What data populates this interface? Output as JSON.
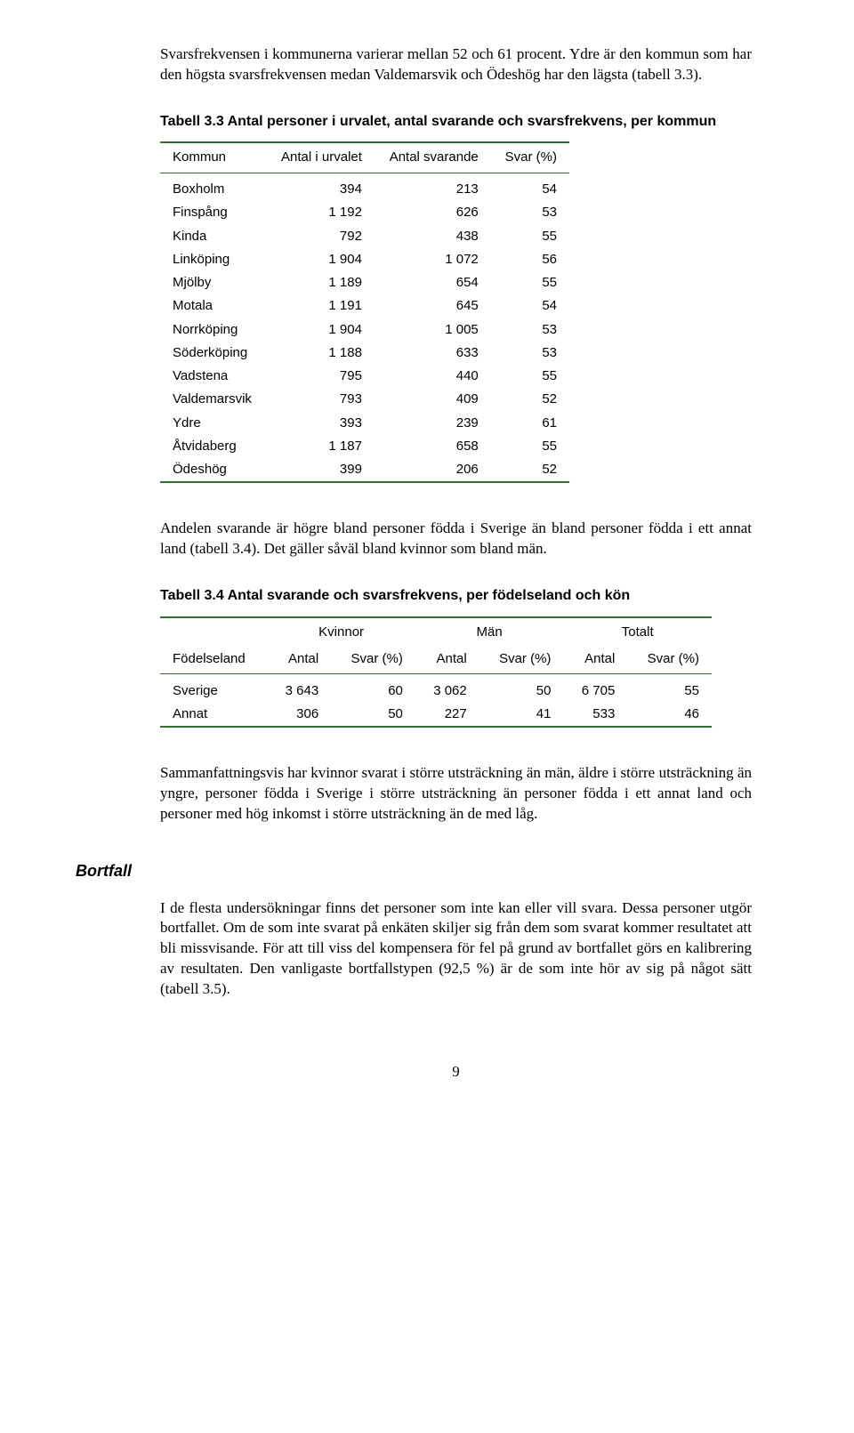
{
  "para1": "Svarsfrekvensen i kommunerna varierar mellan 52 och 61 procent. Ydre är den kommun som har den högsta svarsfrekvensen medan Valdemarsvik och Ödeshög har den lägsta (tabell 3.3).",
  "table1": {
    "caption": "Tabell 3.3 Antal personer i urvalet, antal svarande och svarsfrekvens, per kommun",
    "headers": {
      "c0": "Kommun",
      "c1": "Antal i urvalet",
      "c2": "Antal svarande",
      "c3": "Svar (%)"
    },
    "rows": [
      {
        "c0": "Boxholm",
        "c1": "394",
        "c2": "213",
        "c3": "54"
      },
      {
        "c0": "Finspång",
        "c1": "1 192",
        "c2": "626",
        "c3": "53"
      },
      {
        "c0": "Kinda",
        "c1": "792",
        "c2": "438",
        "c3": "55"
      },
      {
        "c0": "Linköping",
        "c1": "1 904",
        "c2": "1 072",
        "c3": "56"
      },
      {
        "c0": "Mjölby",
        "c1": "1 189",
        "c2": "654",
        "c3": "55"
      },
      {
        "c0": "Motala",
        "c1": "1 191",
        "c2": "645",
        "c3": "54"
      },
      {
        "c0": "Norrköping",
        "c1": "1 904",
        "c2": "1 005",
        "c3": "53"
      },
      {
        "c0": "Söderköping",
        "c1": "1 188",
        "c2": "633",
        "c3": "53"
      },
      {
        "c0": "Vadstena",
        "c1": "795",
        "c2": "440",
        "c3": "55"
      },
      {
        "c0": "Valdemarsvik",
        "c1": "793",
        "c2": "409",
        "c3": "52"
      },
      {
        "c0": "Ydre",
        "c1": "393",
        "c2": "239",
        "c3": "61"
      },
      {
        "c0": "Åtvidaberg",
        "c1": "1 187",
        "c2": "658",
        "c3": "55"
      },
      {
        "c0": "Ödeshög",
        "c1": "399",
        "c2": "206",
        "c3": "52"
      }
    ]
  },
  "para2": "Andelen svarande är högre bland personer födda i Sverige än bland personer födda i ett annat land (tabell 3.4). Det gäller såväl bland kvinnor som bland män.",
  "table2": {
    "caption": "Tabell 3.4 Antal svarande och svarsfrekvens, per födelseland och kön",
    "groupHeaders": {
      "g0": "Kvinnor",
      "g1": "Män",
      "g2": "Totalt"
    },
    "headers": {
      "c0": "Födelseland",
      "c1": "Antal",
      "c2": "Svar (%)",
      "c3": "Antal",
      "c4": "Svar (%)",
      "c5": "Antal",
      "c6": "Svar (%)"
    },
    "rows": [
      {
        "c0": "Sverige",
        "c1": "3 643",
        "c2": "60",
        "c3": "3 062",
        "c4": "50",
        "c5": "6 705",
        "c6": "55"
      },
      {
        "c0": "Annat",
        "c1": "306",
        "c2": "50",
        "c3": "227",
        "c4": "41",
        "c5": "533",
        "c6": "46"
      }
    ]
  },
  "para3": "Sammanfattningsvis har kvinnor svarat i större utsträckning än män, äldre i större utsträckning än yngre, personer födda i Sverige i större utsträckning än personer födda i ett annat land och personer med hög inkomst i större utsträckning än de med låg.",
  "sectionHeading": "Bortfall",
  "para4": "I de flesta undersökningar finns det personer som inte kan eller vill svara. Dessa personer utgör bortfallet. Om de som inte svarat på enkäten skiljer sig från dem som svarat kommer resultatet att bli missvisande. För att till viss del kompensera för fel på grund av bortfallet görs en kalibrering av resultaten. Den vanligaste bortfallstypen (92,5 %) är de som inte hör av sig på något sätt (tabell 3.5).",
  "pageNumber": "9"
}
